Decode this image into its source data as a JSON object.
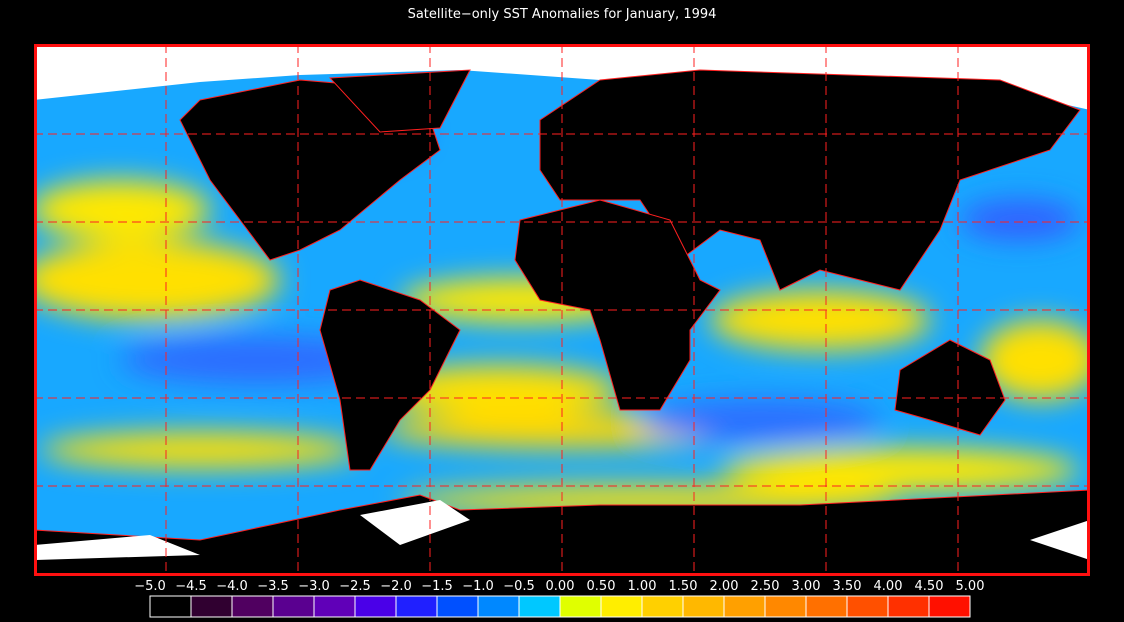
{
  "title": "Satellite−only SST Anomalies for January, 1994",
  "colorbar": {
    "labels": [
      "−5.0",
      "−4.5",
      "−4.0",
      "−3.5",
      "−3.0",
      "−2.5",
      "−2.0",
      "−1.5",
      "−1.0",
      "−0.5",
      "0.00",
      "0.50",
      "1.00",
      "1.50",
      "2.00",
      "2.50",
      "3.00",
      "3.50",
      "4.00",
      "4.50",
      "5.00"
    ],
    "colors": [
      "#000000",
      "#300030",
      "#500060",
      "#5a0090",
      "#6000b8",
      "#4a00e8",
      "#2020ff",
      "#0050ff",
      "#0088ff",
      "#00c8ff",
      "#e0ff00",
      "#ffee00",
      "#ffd000",
      "#ffb800",
      "#ffa000",
      "#ff8800",
      "#ff7000",
      "#ff5000",
      "#ff3000",
      "#ff1000"
    ]
  }
}
